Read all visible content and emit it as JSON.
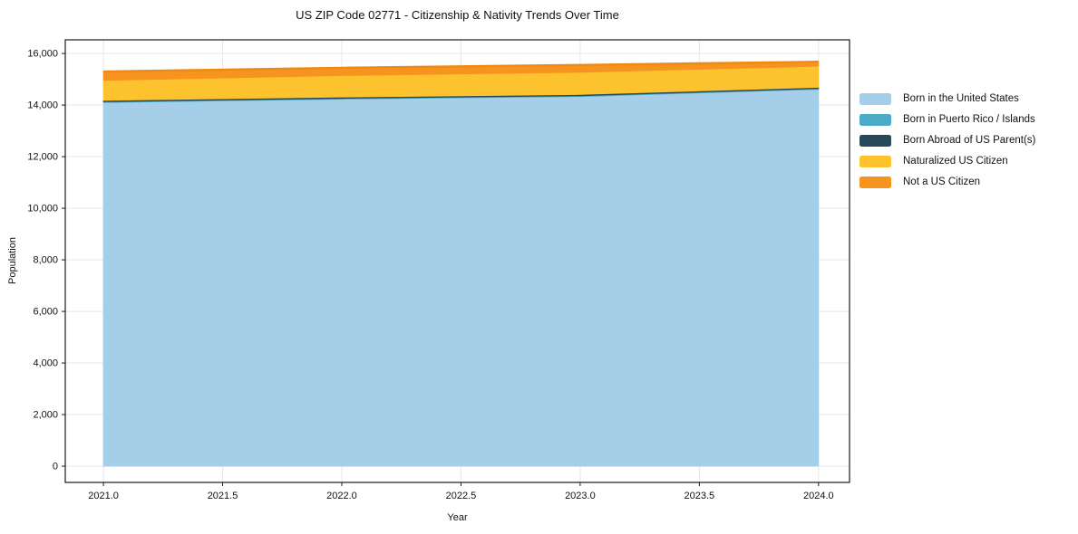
{
  "title": "US ZIP Code 02771 - Citizenship & Nativity Trends Over Time",
  "chart_data": {
    "type": "area",
    "stacked": true,
    "x": [
      2021,
      2022,
      2023,
      2024
    ],
    "series": [
      {
        "name": "Born in the United States",
        "color": "#a5cfe8",
        "values": [
          14100,
          14230,
          14330,
          14610
        ]
      },
      {
        "name": "Born in Puerto Rico / Islands",
        "color": "#4babc9",
        "values": [
          30,
          30,
          30,
          30
        ]
      },
      {
        "name": "Born Abroad of US Parent(s)",
        "color": "#29485a",
        "values": [
          50,
          50,
          50,
          50
        ]
      },
      {
        "name": "Naturalized US Citizen",
        "color": "#fdc32e",
        "values": [
          775,
          835,
          860,
          815
        ]
      },
      {
        "name": "Not a US Citizen",
        "color": "#f7941f",
        "values": [
          345,
          300,
          285,
          175
        ]
      }
    ],
    "title": "US ZIP Code 02771 - Citizenship & Nativity Trends Over Time",
    "xlabel": "Year",
    "ylabel": "Population",
    "x_ticks": [
      2021.0,
      2021.5,
      2022.0,
      2022.5,
      2023.0,
      2023.5,
      2024.0
    ],
    "x_tick_labels": [
      "2021.0",
      "2021.5",
      "2022.0",
      "2022.5",
      "2023.0",
      "2023.5",
      "2024.0"
    ],
    "y_ticks": [
      0,
      2000,
      4000,
      6000,
      8000,
      10000,
      12000,
      14000,
      16000
    ],
    "y_tick_labels": [
      "0",
      "2,000",
      "4,000",
      "6,000",
      "8,000",
      "10,000",
      "12,000",
      "14,000",
      "16,000"
    ],
    "xlim": [
      2020.84,
      2024.13
    ],
    "ylim": [
      -630,
      16530
    ],
    "grid": true,
    "grid_color": "#e7e7e7",
    "spine_color": "#1a1a1a",
    "top_edge_stroke": "#ee8912",
    "legend_position": "outside-right"
  }
}
